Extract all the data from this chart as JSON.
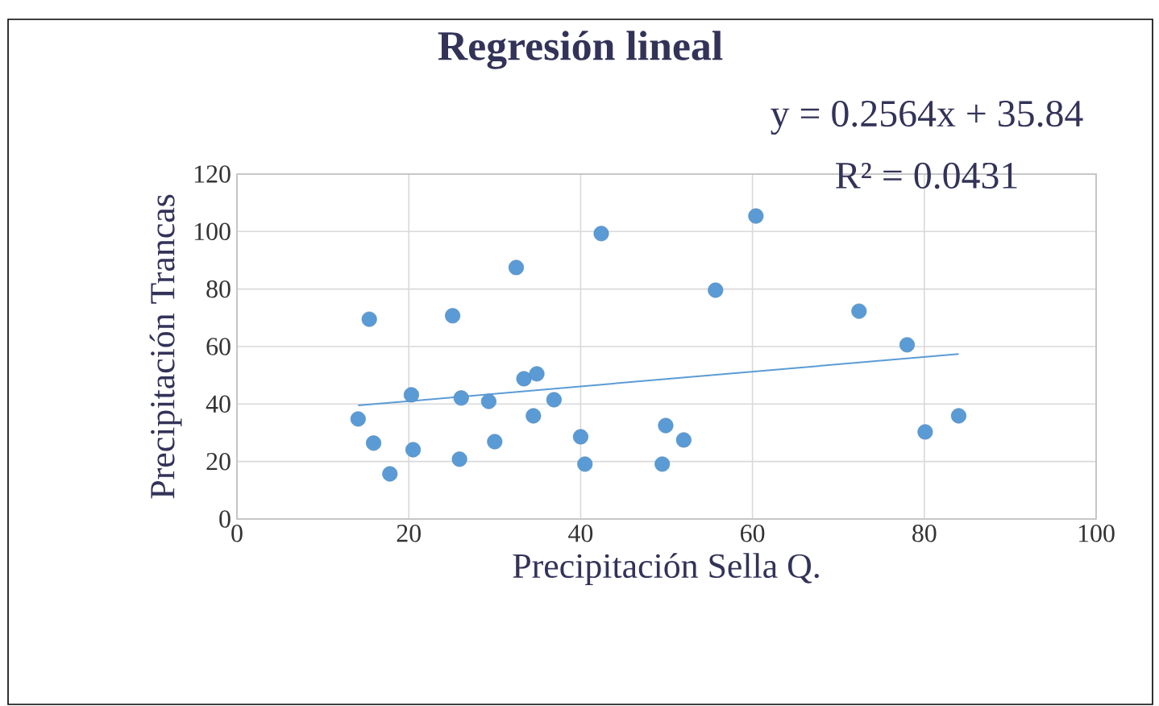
{
  "chart_data": {
    "type": "scatter",
    "title": "Regresión lineal",
    "xlabel": "Precipitación Sella Q.",
    "ylabel": "Precipitación Trancas",
    "xlim": [
      0,
      100
    ],
    "ylim": [
      0,
      120
    ],
    "xticks": [
      0,
      20,
      40,
      60,
      80,
      100
    ],
    "yticks": [
      0,
      20,
      40,
      60,
      80,
      100,
      120
    ],
    "grid": true,
    "marker": "circle",
    "series": [
      {
        "color": "#5b9bd5",
        "x": [
          14.1,
          15.4,
          15.9,
          17.8,
          20.3,
          20.5,
          25.1,
          26.1,
          25.9,
          29.3,
          30.0,
          32.5,
          33.4,
          34.9,
          34.5,
          36.9,
          40.0,
          40.5,
          42.4,
          60.4,
          55.7,
          49.9,
          52.0,
          49.5,
          72.4,
          78.0,
          80.1,
          84.0
        ],
        "values": [
          34.8,
          69.5,
          26.4,
          15.7,
          43.2,
          24.1,
          70.7,
          42.1,
          20.8,
          40.9,
          26.9,
          87.5,
          48.8,
          50.5,
          35.9,
          41.5,
          28.6,
          19.1,
          99.3,
          105.4,
          79.6,
          32.5,
          27.5,
          19.1,
          72.3,
          60.6,
          30.3,
          35.9
        ]
      },
      {
        "type": "line",
        "color": "#5b9bd5",
        "marker": "none",
        "x": [
          14.1,
          84.0
        ],
        "values": [
          39.5,
          57.4
        ]
      }
    ],
    "annotations": [
      "y = 0.2564x + 35.84",
      "R² = 0.0431"
    ]
  }
}
